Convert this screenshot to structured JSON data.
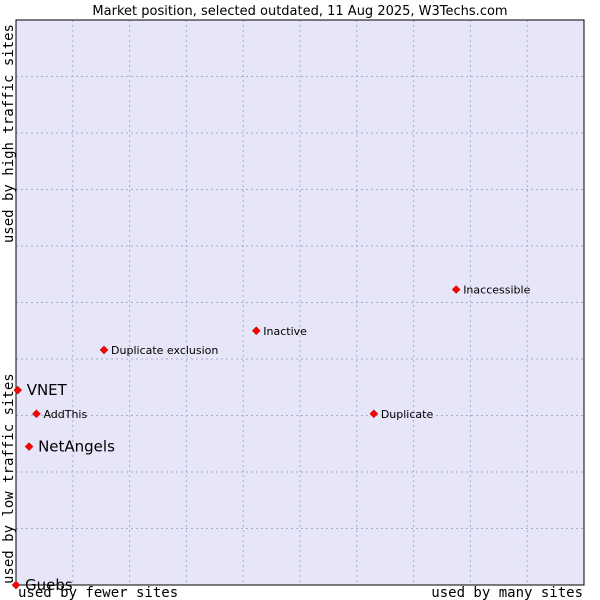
{
  "chart_data": {
    "type": "scatter",
    "title": "Market position, selected outdated, 11 Aug 2025, W3Techs.com",
    "xlabel_left": "used by fewer sites",
    "xlabel_right": "used by many sites",
    "ylabel_bottom": "used by low traffic sites",
    "ylabel_top": "used by high traffic sites",
    "xlim": [
      0,
      100
    ],
    "ylim": [
      0,
      100
    ],
    "grid": true,
    "plot_background": "#e6e6f8",
    "grid_color": "#aaaacc",
    "marker_color": "#ff0000",
    "points": [
      {
        "name": "Inaccessible",
        "x": 77.5,
        "y": 52.3,
        "big": false
      },
      {
        "name": "Inactive",
        "x": 42.3,
        "y": 45.0,
        "big": false
      },
      {
        "name": "Duplicate exclusion",
        "x": 15.5,
        "y": 41.6,
        "big": false
      },
      {
        "name": "VNET",
        "x": 0.3,
        "y": 34.5,
        "big": true
      },
      {
        "name": "AddThis",
        "x": 3.6,
        "y": 30.3,
        "big": false
      },
      {
        "name": "Duplicate",
        "x": 63.0,
        "y": 30.3,
        "big": false
      },
      {
        "name": "NetAngels",
        "x": 2.3,
        "y": 24.5,
        "big": true
      },
      {
        "name": "Guebs",
        "x": 0.0,
        "y": 0.0,
        "big": true
      }
    ]
  }
}
